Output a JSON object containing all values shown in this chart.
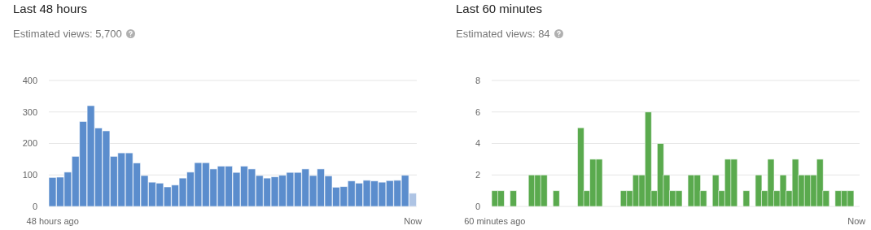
{
  "chart_data": [
    {
      "type": "bar",
      "title": "Last 48 hours",
      "subtitle": "Estimated views: 5,700",
      "categories": [
        "48 hours ago",
        null,
        null,
        null,
        null,
        null,
        null,
        null,
        null,
        null,
        null,
        null,
        null,
        null,
        null,
        null,
        null,
        null,
        null,
        null,
        null,
        null,
        null,
        null,
        null,
        null,
        null,
        null,
        null,
        null,
        null,
        null,
        null,
        null,
        null,
        null,
        null,
        null,
        null,
        null,
        null,
        null,
        null,
        null,
        null,
        null,
        null,
        "Now"
      ],
      "values": [
        92,
        93,
        109,
        159,
        270,
        320,
        249,
        240,
        159,
        170,
        170,
        138,
        98,
        77,
        74,
        62,
        68,
        90,
        109,
        139,
        139,
        119,
        128,
        128,
        108,
        128,
        119,
        98,
        90,
        94,
        99,
        108,
        108,
        119,
        98,
        119,
        97,
        61,
        63,
        81,
        74,
        83,
        81,
        77,
        82,
        83,
        99,
        42
      ],
      "colors": [
        "#5b8dcd",
        "#5b8dcd",
        "#5b8dcd",
        "#5b8dcd",
        "#5b8dcd",
        "#5b8dcd",
        "#5b8dcd",
        "#5b8dcd",
        "#5b8dcd",
        "#5b8dcd",
        "#5b8dcd",
        "#5b8dcd",
        "#5b8dcd",
        "#5b8dcd",
        "#5b8dcd",
        "#5b8dcd",
        "#5b8dcd",
        "#5b8dcd",
        "#5b8dcd",
        "#5b8dcd",
        "#5b8dcd",
        "#5b8dcd",
        "#5b8dcd",
        "#5b8dcd",
        "#5b8dcd",
        "#5b8dcd",
        "#5b8dcd",
        "#5b8dcd",
        "#5b8dcd",
        "#5b8dcd",
        "#5b8dcd",
        "#5b8dcd",
        "#5b8dcd",
        "#5b8dcd",
        "#5b8dcd",
        "#5b8dcd",
        "#5b8dcd",
        "#5b8dcd",
        "#5b8dcd",
        "#5b8dcd",
        "#5b8dcd",
        "#5b8dcd",
        "#5b8dcd",
        "#5b8dcd",
        "#5b8dcd",
        "#5b8dcd",
        "#5b8dcd",
        "#aec4e4"
      ],
      "ylim": [
        0,
        400
      ],
      "yticks": [
        0,
        100,
        200,
        300,
        400
      ],
      "grid": "y"
    },
    {
      "type": "bar",
      "title": "Last 60 minutes",
      "subtitle": "Estimated views: 84",
      "categories": [
        "60 minutes ago",
        null,
        null,
        null,
        null,
        null,
        null,
        null,
        null,
        null,
        null,
        null,
        null,
        null,
        null,
        null,
        null,
        null,
        null,
        null,
        null,
        null,
        null,
        null,
        null,
        null,
        null,
        null,
        null,
        null,
        null,
        null,
        null,
        null,
        null,
        null,
        null,
        null,
        null,
        null,
        null,
        null,
        null,
        null,
        null,
        null,
        null,
        null,
        null,
        null,
        null,
        null,
        null,
        null,
        null,
        null,
        null,
        null,
        null,
        "Now"
      ],
      "values": [
        1,
        1,
        0,
        1,
        0,
        0,
        2,
        2,
        2,
        0,
        1,
        0,
        0,
        0,
        5,
        1,
        3,
        3,
        0,
        0,
        0,
        1,
        1,
        2,
        2,
        6,
        1,
        4,
        2,
        1,
        1,
        0,
        2,
        2,
        1,
        0,
        2,
        1,
        3,
        3,
        0,
        1,
        0,
        2,
        1,
        3,
        1,
        2,
        1,
        3,
        2,
        2,
        2,
        3,
        1,
        0,
        1,
        1,
        1,
        0
      ],
      "color": "#5aaa4e",
      "ylim": [
        0,
        8
      ],
      "yticks": [
        0,
        2,
        4,
        6,
        8
      ],
      "grid": "y"
    }
  ]
}
